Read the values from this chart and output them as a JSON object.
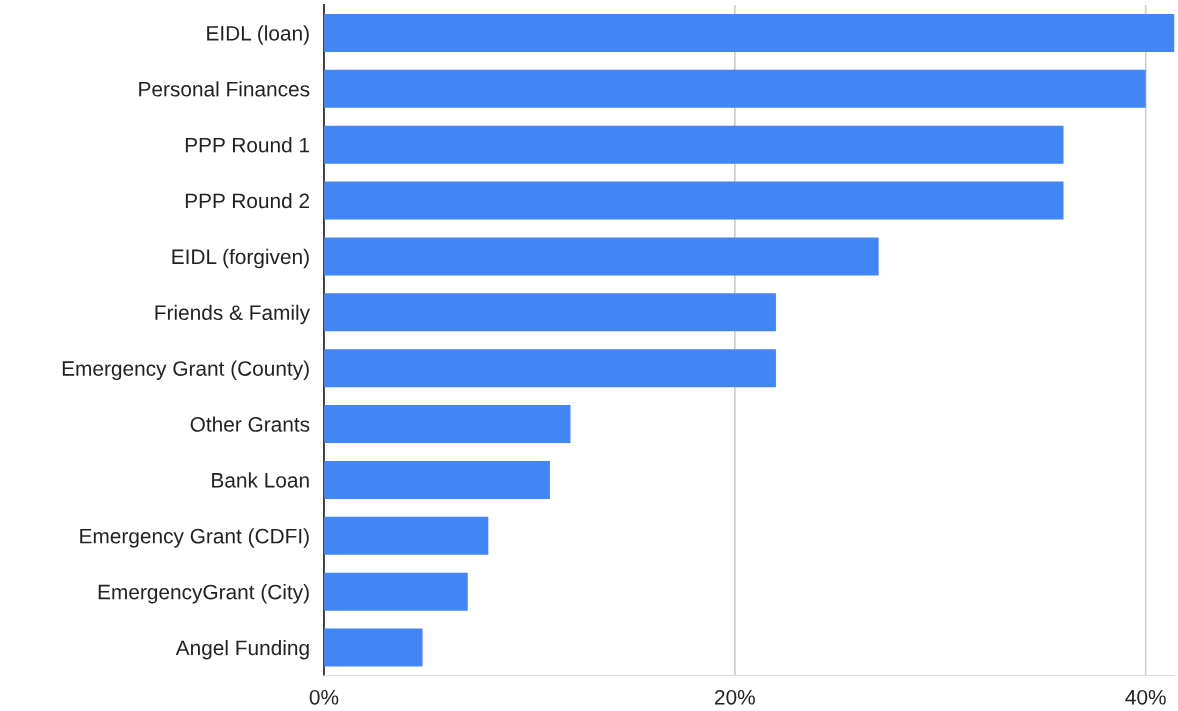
{
  "chart_data": {
    "type": "bar",
    "orientation": "horizontal",
    "categories": [
      "EIDL (loan)",
      "Personal Finances",
      "PPP Round 1",
      "PPP Round 2",
      "EIDL (forgiven)",
      "Friends & Family",
      "Emergency Grant (County)",
      "Other Grants",
      "Bank Loan",
      "Emergency Grant (CDFI)",
      "EmergencyGrant (City)",
      "Angel Funding"
    ],
    "values": [
      41.4,
      40,
      36,
      36,
      27,
      22,
      22,
      12,
      11,
      8,
      7,
      4.8
    ],
    "color": "#4285f4",
    "xlim": [
      0,
      41.4
    ],
    "xticks": [
      {
        "value": 0,
        "label": "0%"
      },
      {
        "value": 20,
        "label": "20%"
      },
      {
        "value": 40,
        "label": "40%"
      }
    ],
    "grid": "x",
    "legend": false
  }
}
